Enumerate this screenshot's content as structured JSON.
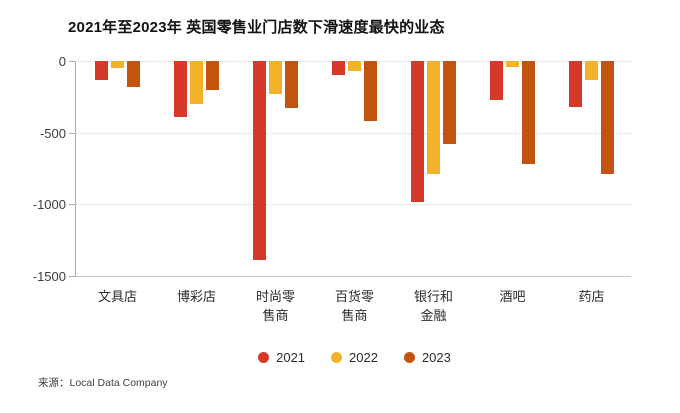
{
  "title": "2021年至2023年 英国零售业门店数下滑速度最快的业态",
  "source": "来源：Local Data Company",
  "chart_data": {
    "type": "bar",
    "title": "2021年至2023年 英国零售业门店数下滑速度最快的业态",
    "categories": [
      "文具店",
      "博彩店",
      "时尚零售商",
      "百货零售商",
      "银行和金融",
      "酒吧",
      "药店"
    ],
    "series": [
      {
        "name": "2021",
        "color": "#d6392a",
        "values": [
          -130,
          -390,
          -1390,
          -100,
          -980,
          -270,
          -320
        ]
      },
      {
        "name": "2022",
        "color": "#f2b32b",
        "values": [
          -50,
          -300,
          -230,
          -70,
          -790,
          -40,
          -130
        ]
      },
      {
        "name": "2023",
        "color": "#c2540f",
        "values": [
          -180,
          -200,
          -330,
          -420,
          -580,
          -720,
          -790
        ]
      }
    ],
    "xlabel": "",
    "ylabel": "",
    "ylim": [
      -1500,
      0
    ],
    "y_ticks": [
      {
        "label": "0",
        "value": 0
      },
      {
        "label": "-500",
        "value": -500
      },
      {
        "label": "-1000",
        "value": -1000
      },
      {
        "label": "-1500",
        "value": -1500
      }
    ],
    "grid": "horizontal-dotted",
    "legend_position": "bottom-center",
    "source": "来源：Local Data Company"
  }
}
